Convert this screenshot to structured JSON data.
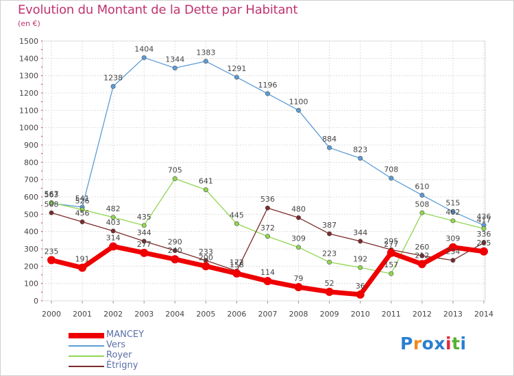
{
  "header": {
    "title": "Evolution du Montant de la Dette par Habitant",
    "unit": "(en €)"
  },
  "logo": {
    "letters": [
      "P",
      "r",
      "o",
      "x",
      "i",
      "t",
      "i"
    ],
    "colors": [
      "#2a7fd0",
      "#f08a1f",
      "#2a7fd0",
      "#2a7fd0",
      "#e02b3a",
      "#58b130",
      "#2a7fd0"
    ]
  },
  "chart_data": {
    "type": "line",
    "title": "Evolution du Montant de la Dette par Habitant",
    "ylabel": "(en €)",
    "xlabel": "",
    "ylim": [
      0,
      1500
    ],
    "yticks": [
      0,
      100,
      200,
      300,
      400,
      500,
      600,
      700,
      800,
      900,
      1000,
      1100,
      1200,
      1300,
      1400,
      1500
    ],
    "grid": true,
    "legend_position": "bottom-left",
    "x": [
      "2000",
      "2001",
      "2002",
      "2003",
      "2004",
      "2005",
      "2006",
      "2007",
      "2008",
      "2009",
      "2010",
      "2011",
      "2012",
      "2013",
      "2014"
    ],
    "series": [
      {
        "name": "MANCEY",
        "color": "#ee0000",
        "values": [
          235,
          191,
          314,
          277,
          240,
          200,
          158,
          114,
          79,
          52,
          36,
          277,
          212,
          309,
          285
        ]
      },
      {
        "name": "Vers",
        "color": "#5b9bd5",
        "values": [
          563,
          541,
          1238,
          1404,
          1344,
          1383,
          1291,
          1196,
          1100,
          884,
          823,
          708,
          610,
          515,
          436
        ]
      },
      {
        "name": "Royer",
        "color": "#8fd650",
        "values": [
          567,
          526,
          482,
          435,
          705,
          641,
          445,
          372,
          309,
          223,
          192,
          157,
          508,
          462,
          417
        ]
      },
      {
        "name": "Étrigny",
        "color": "#7b2a2a",
        "values": [
          508,
          456,
          403,
          344,
          290,
          233,
          172,
          536,
          480,
          387,
          344,
          295,
          260,
          234,
          336
        ]
      }
    ]
  }
}
